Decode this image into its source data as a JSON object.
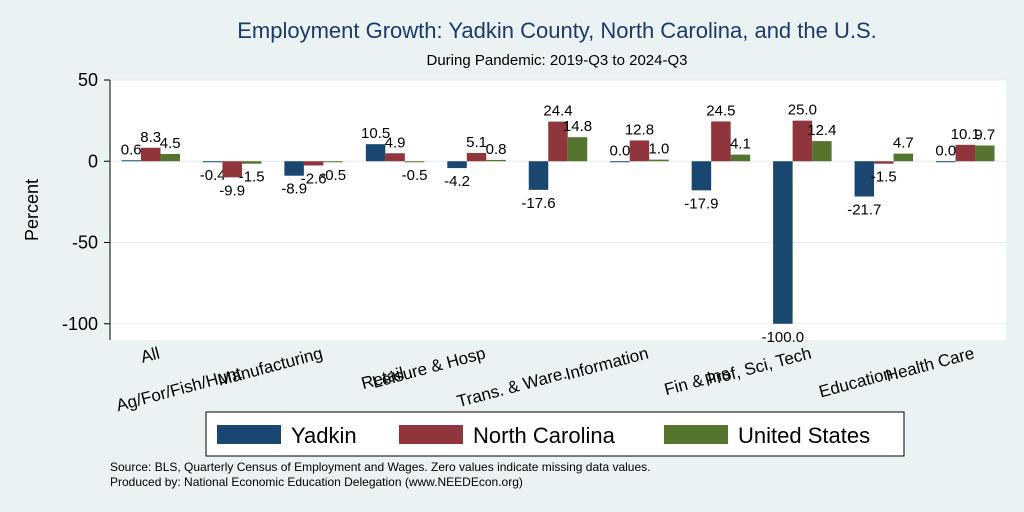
{
  "chart_data": {
    "type": "bar",
    "title": "Employment Growth: Yadkin County, North Carolina, and the U.S.",
    "subtitle": "During Pandemic: 2019-Q3 to 2024-Q3",
    "xlabel": "",
    "ylabel": "Percent",
    "ylim": [
      -110,
      50
    ],
    "yticks": [
      50,
      0,
      -50,
      -100
    ],
    "grid": true,
    "legend_position": "bottom",
    "categories": [
      "All",
      "Ag/For/Fish/Hunt",
      "Manufacturing",
      "Retail",
      "Leisure & Hosp",
      "Trans. & Ware.",
      "Information",
      "Fin & Ins",
      "Prof, Sci, Tech",
      "Education",
      "Health Care"
    ],
    "series": [
      {
        "name": "Yadkin",
        "color": "#1a476f",
        "values": [
          0.6,
          -0.4,
          -8.9,
          10.5,
          -4.2,
          -17.6,
          0.0,
          -17.9,
          -100.0,
          -21.7,
          0.0
        ]
      },
      {
        "name": "North Carolina",
        "color": "#90353b",
        "values": [
          8.3,
          -9.9,
          -2.6,
          4.9,
          5.1,
          24.4,
          12.8,
          24.5,
          25.0,
          -1.5,
          10.1
        ]
      },
      {
        "name": "United States",
        "color": "#55752f",
        "values": [
          4.5,
          -1.5,
          -0.5,
          -0.5,
          0.8,
          14.8,
          1.0,
          4.1,
          12.4,
          4.7,
          9.7
        ]
      }
    ],
    "labels": [
      [
        "0.6",
        "-0.4",
        "-8.9",
        "10.5",
        "-4.2",
        "-17.6",
        "0.0",
        "-17.9",
        "-100.0",
        "-21.7",
        "0.0"
      ],
      [
        "8.3",
        "-9.9",
        "-2.6",
        "4.9",
        "5.1",
        "24.4",
        "12.8",
        "24.5",
        "25.0",
        "-1.5",
        "10.1"
      ],
      [
        "4.5",
        "-1.5",
        "-0.5",
        "-0.5",
        "0.8",
        "14.8",
        "1.0",
        "4.1",
        "12.4",
        "4.7",
        "9.7"
      ]
    ]
  },
  "source_line1": "Source: BLS, Quarterly Census of Employment and Wages. Zero values indicate missing data values.",
  "source_line2": "Produced by: National Economic Education Delegation (www.NEEDEcon.org)"
}
